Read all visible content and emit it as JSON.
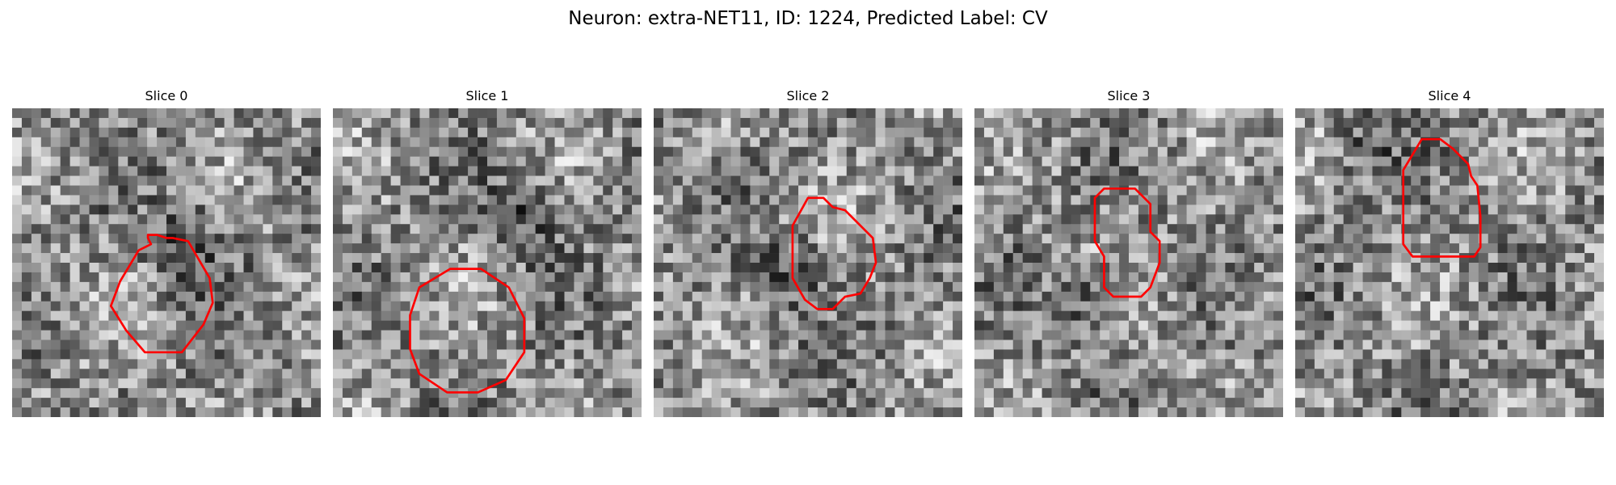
{
  "figure": {
    "title": "Neuron: extra-NET11, ID: 1224, Predicted Label: CV",
    "contour_color": "#ff0000"
  },
  "panels": [
    {
      "title": "Slice 0",
      "seed": 11,
      "blob_cx": 0.58,
      "blob_cy": 0.45,
      "blob_r": 0.22,
      "contour": [
        [
          0.35,
          0.56
        ],
        [
          0.41,
          0.46
        ],
        [
          0.45,
          0.44
        ],
        [
          0.44,
          0.42
        ],
        [
          0.44,
          0.41
        ],
        [
          0.47,
          0.41
        ],
        [
          0.5,
          0.42
        ],
        [
          0.52,
          0.42
        ],
        [
          0.57,
          0.43
        ],
        [
          0.64,
          0.55
        ],
        [
          0.65,
          0.63
        ],
        [
          0.62,
          0.7
        ],
        [
          0.55,
          0.79
        ],
        [
          0.43,
          0.79
        ],
        [
          0.37,
          0.72
        ],
        [
          0.32,
          0.64
        ]
      ]
    },
    {
      "title": "Slice 1",
      "seed": 23,
      "blob_cx": 0.62,
      "blob_cy": 0.35,
      "blob_r": 0.2,
      "contour": [
        [
          0.28,
          0.58
        ],
        [
          0.38,
          0.52
        ],
        [
          0.48,
          0.52
        ],
        [
          0.57,
          0.58
        ],
        [
          0.62,
          0.68
        ],
        [
          0.62,
          0.79
        ],
        [
          0.56,
          0.88
        ],
        [
          0.47,
          0.92
        ],
        [
          0.37,
          0.92
        ],
        [
          0.28,
          0.86
        ],
        [
          0.25,
          0.78
        ],
        [
          0.25,
          0.67
        ]
      ]
    },
    {
      "title": "Slice 2",
      "seed": 37,
      "blob_cx": 0.45,
      "blob_cy": 0.55,
      "blob_r": 0.18,
      "contour": [
        [
          0.45,
          0.38
        ],
        [
          0.5,
          0.29
        ],
        [
          0.55,
          0.29
        ],
        [
          0.58,
          0.32
        ],
        [
          0.62,
          0.33
        ],
        [
          0.71,
          0.42
        ],
        [
          0.72,
          0.5
        ],
        [
          0.7,
          0.55
        ],
        [
          0.67,
          0.6
        ],
        [
          0.62,
          0.61
        ],
        [
          0.58,
          0.65
        ],
        [
          0.53,
          0.65
        ],
        [
          0.49,
          0.62
        ],
        [
          0.45,
          0.55
        ]
      ]
    },
    {
      "title": "Slice 3",
      "seed": 51,
      "blob_cx": 0.38,
      "blob_cy": 0.62,
      "blob_r": 0.18,
      "contour": [
        [
          0.39,
          0.29
        ],
        [
          0.42,
          0.26
        ],
        [
          0.52,
          0.26
        ],
        [
          0.57,
          0.31
        ],
        [
          0.57,
          0.4
        ],
        [
          0.6,
          0.43
        ],
        [
          0.6,
          0.5
        ],
        [
          0.57,
          0.58
        ],
        [
          0.54,
          0.61
        ],
        [
          0.45,
          0.61
        ],
        [
          0.42,
          0.58
        ],
        [
          0.42,
          0.48
        ],
        [
          0.39,
          0.43
        ]
      ]
    },
    {
      "title": "Slice 4",
      "seed": 67,
      "blob_cx": 0.22,
      "blob_cy": 0.12,
      "blob_r": 0.14,
      "contour": [
        [
          0.35,
          0.2
        ],
        [
          0.41,
          0.1
        ],
        [
          0.47,
          0.1
        ],
        [
          0.51,
          0.13
        ],
        [
          0.53,
          0.15
        ],
        [
          0.56,
          0.18
        ],
        [
          0.57,
          0.22
        ],
        [
          0.59,
          0.25
        ],
        [
          0.6,
          0.35
        ],
        [
          0.6,
          0.45
        ],
        [
          0.58,
          0.48
        ],
        [
          0.45,
          0.48
        ],
        [
          0.38,
          0.48
        ],
        [
          0.35,
          0.44
        ]
      ]
    }
  ]
}
